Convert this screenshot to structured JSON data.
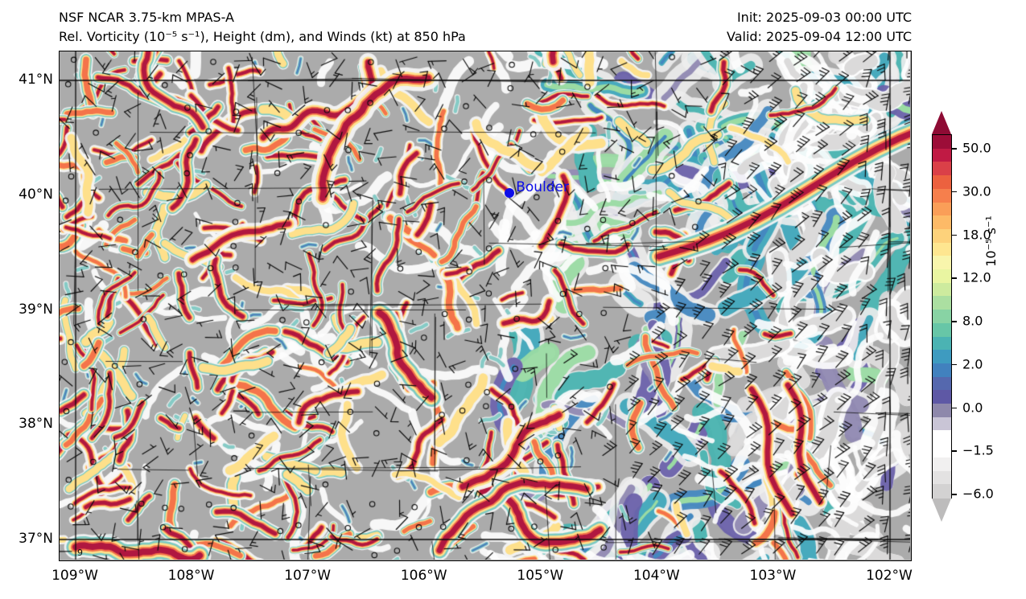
{
  "figure": {
    "title_line1": "NSF NCAR 3.75-km MPAS-A",
    "title_line2": "Rel. Vorticity (10⁻⁵ s⁻¹), Height (dm), and Winds (kt) at 850 hPa",
    "init_label": "Init: 2025-09-03 00:00 UTC",
    "valid_label": "Valid: 2025-09-04 12:00 UTC"
  },
  "chart_data": {
    "type": "heatmap",
    "title": "NSF NCAR 3.75-km MPAS-A — Rel. Vorticity (10^-5 s^-1), Height (dm), and Winds (kt) at 850 hPa",
    "init_time": "2025-09-03 00:00 UTC",
    "valid_time": "2025-09-04 12:00 UTC",
    "x_axis": {
      "tick_labels": [
        "109°W",
        "108°W",
        "107°W",
        "106°W",
        "105°W",
        "104°W",
        "103°W",
        "102°W"
      ],
      "tick_values_deg": [
        -109,
        -108,
        -107,
        -106,
        -105,
        -104,
        -103,
        -102
      ],
      "range_deg": [
        -109.14,
        -101.81
      ]
    },
    "y_axis": {
      "tick_labels": [
        "41°N",
        "40°N",
        "39°N",
        "38°N",
        "37°N"
      ],
      "tick_values_deg": [
        41,
        40,
        39,
        38,
        37
      ],
      "range_deg": [
        36.75,
        41.25
      ]
    },
    "colorbar": {
      "unit_label": "10⁻⁵ s⁻¹",
      "tick_labels": [
        "50.0",
        "30.0",
        "18.0",
        "12.0",
        "8.0",
        "2.0",
        "0.0",
        "−1.5",
        "−6.0"
      ],
      "tick_values": [
        50,
        30,
        18,
        12,
        8,
        2,
        0,
        -1.5,
        -6
      ],
      "over_color": "#8e0b34",
      "under_color": "#bdbcbc",
      "segment_colors_top_to_bottom": [
        "#9c0d38",
        "#c01a44",
        "#da4048",
        "#ec613f",
        "#f67f4c",
        "#fa9e58",
        "#fdba67",
        "#fdd27b",
        "#fee690",
        "#f8f5ac",
        "#e9f5a1",
        "#cdeb9e",
        "#abdfa1",
        "#88d3a4",
        "#67c6a7",
        "#4bb3b3",
        "#3e9bc0",
        "#4181be",
        "#5568ae",
        "#5e58a5",
        "#8e88ab",
        "#c9c5d6",
        "#ffffff",
        "#ffffff",
        "#f1f0f0",
        "#e3e2e2",
        "#d3d2d2"
      ]
    },
    "markers": [
      {
        "name": "Boulder",
        "label": "Boulder",
        "lon": -105.27,
        "lat": 40.02,
        "color": "#0d0de8"
      }
    ],
    "stray_contour_label": "9",
    "field_summary": "Gray background (weak negative vorticity) with dense curvilinear filaments of high positive vorticity (crimson cores >50, orange/yellow fringes) over the mountains in the west and center; broad cyan/blue/purple positive-vorticity bands with white (near-zero) halos over the eastern plains; prominent crimson streak aligned SW-NE near the northeast corner.",
    "wind_summary": [
      {
        "region": "west/center (mountains)",
        "winds": "light 3-15 kt, variable direction, many calm stations shown as open circles"
      },
      {
        "region": "eastern plains",
        "winds": "18-35 kt from the north-northeast, barbs with 2-3 full flags"
      }
    ],
    "boundaries": "State border rectangle at 41N/37N/109W/102W with county polygons drawn as thin black lines",
    "render": {
      "seed": 1337,
      "bg": "#ababab",
      "warm": {
        "halo": "#f4f4f4",
        "teal": "#6fc5bd",
        "yellow": "#fee08b",
        "orange": "#f4744a",
        "crimson": "#b01740"
      },
      "cool": [
        "#49b3b0",
        "#9adba3",
        "#4488c0",
        "#6a61aa",
        "#9089b2",
        "#3fa7bb"
      ],
      "white": "#fdfdfd",
      "lightgray": "#d9d8d8",
      "line": "#0a0a0a"
    }
  }
}
